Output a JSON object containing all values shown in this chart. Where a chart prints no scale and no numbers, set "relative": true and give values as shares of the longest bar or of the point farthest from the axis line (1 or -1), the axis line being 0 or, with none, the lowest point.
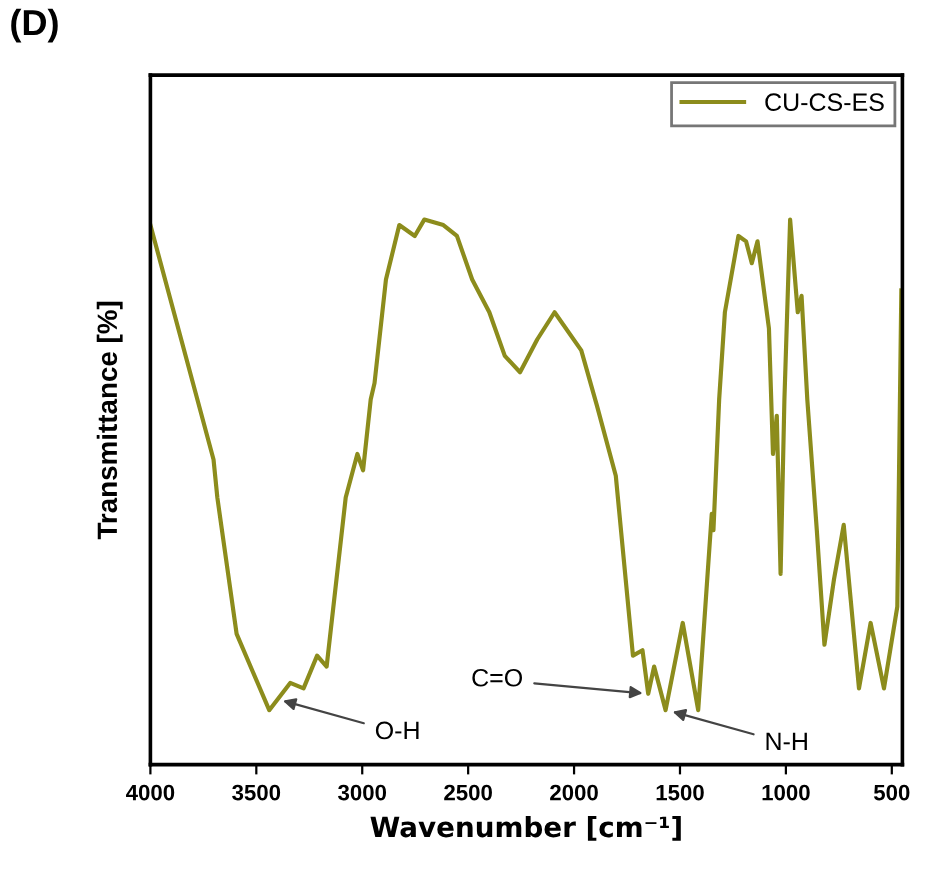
{
  "chart_data": {
    "type": "line",
    "title": "(D)",
    "xlabel": "Wavenumber [cm⁻¹]",
    "ylabel": "Transmittance [%]",
    "relative": true,
    "xlim": [
      4000,
      450
    ],
    "xticks": [
      4000,
      3500,
      3000,
      2500,
      2000,
      1500,
      1000,
      500
    ],
    "grid": false,
    "legend": "top right",
    "line_style": "solid",
    "marker": "none",
    "series": [
      {
        "name": "CU-CS-ES",
        "color": "#8c8c1c",
        "x": [
          4000,
          3702,
          3684,
          3593,
          3439,
          3340,
          3277,
          3213,
          3168,
          3078,
          3023,
          2996,
          2960,
          2942,
          2888,
          2825,
          2752,
          2707,
          2617,
          2553,
          2481,
          2400,
          2327,
          2255,
          2174,
          2092,
          1966,
          1893,
          1803,
          1722,
          1677,
          1650,
          1622,
          1568,
          1487,
          1414,
          1350,
          1342,
          1315,
          1288,
          1224,
          1188,
          1161,
          1134,
          1080,
          1061,
          1043,
          1025,
          1007,
          980,
          944,
          926,
          899,
          854,
          818,
          773,
          727,
          655,
          600,
          537,
          474,
          455
        ],
        "values": [
          0.99,
          0.56,
          0.49,
          0.24,
          0.1,
          0.15,
          0.14,
          0.2,
          0.18,
          0.49,
          0.57,
          0.54,
          0.67,
          0.7,
          0.89,
          0.99,
          0.97,
          1.0,
          0.99,
          0.97,
          0.89,
          0.83,
          0.75,
          0.72,
          0.78,
          0.83,
          0.76,
          0.66,
          0.53,
          0.2,
          0.21,
          0.13,
          0.18,
          0.1,
          0.26,
          0.1,
          0.46,
          0.43,
          0.67,
          0.83,
          0.97,
          0.96,
          0.92,
          0.96,
          0.8,
          0.57,
          0.64,
          0.35,
          0.67,
          1.0,
          0.83,
          0.86,
          0.67,
          0.43,
          0.22,
          0.34,
          0.44,
          0.14,
          0.26,
          0.14,
          0.29,
          0.87
        ]
      }
    ],
    "annotations": [
      {
        "text": "O-H",
        "x": 3400,
        "y": 0.12
      },
      {
        "text": "C=O",
        "x": 1650,
        "y": 0.13
      },
      {
        "text": "N-H",
        "x": 1560,
        "y": 0.1
      }
    ]
  }
}
